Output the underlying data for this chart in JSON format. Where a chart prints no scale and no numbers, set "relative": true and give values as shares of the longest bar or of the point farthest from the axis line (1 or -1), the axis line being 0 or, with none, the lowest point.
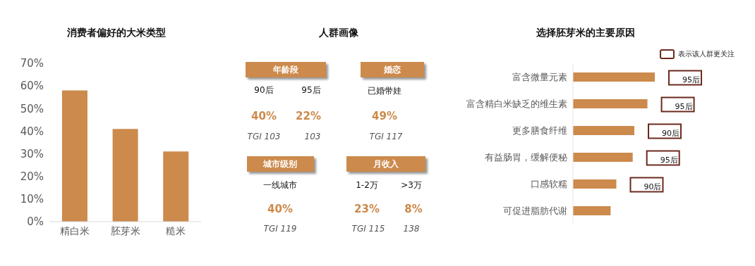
{
  "chart_data": [
    {
      "type": "bar",
      "title": "消费者偏好的大米类型",
      "categories": [
        "精白米",
        "胚芽米",
        "糙米"
      ],
      "values": [
        58,
        41,
        31
      ],
      "color": "#cc8a4c",
      "ylim": [
        0,
        70
      ],
      "yticks": [
        {
          "value": 0,
          "label": "0%"
        },
        {
          "value": 10,
          "label": "10%"
        },
        {
          "value": 20,
          "label": "20%"
        },
        {
          "value": 30,
          "label": "30%"
        },
        {
          "value": 40,
          "label": "40%"
        },
        {
          "value": 50,
          "label": "50%"
        },
        {
          "value": 60,
          "label": "60%"
        },
        {
          "value": 70,
          "label": "70%"
        }
      ]
    },
    {
      "type": "other",
      "title": "人群画像",
      "annotations": [
        "年龄段",
        "90后",
        "95后",
        "40%",
        "22%",
        "TGI 103",
        "103",
        "婚恋",
        "已婚带娃",
        "49%",
        "TGI 117",
        "城市级别",
        "一线城市",
        "40%",
        "TGI 119",
        "月收入",
        "1-2万",
        ">3万",
        "23%",
        "8%",
        "TGI 115",
        "138"
      ]
    },
    {
      "type": "bar",
      "orientation": "horizontal",
      "relative": true,
      "title": "选择胚芽米的主要原因",
      "categories": [
        "富含微量元素",
        "富含精白米缺乏的维生素",
        "更多膳食纤维",
        "有益肠胃，缓解便秘",
        "口感软糯",
        "可促进脂肪代谢"
      ],
      "values": [
        1,
        0.91,
        0.75,
        0.73,
        0.53,
        0.46
      ],
      "color": "#cc8a4c",
      "annotations": [
        "表示该人群更关注",
        "95后",
        "95后",
        "90后",
        "95后",
        "90后"
      ]
    }
  ]
}
